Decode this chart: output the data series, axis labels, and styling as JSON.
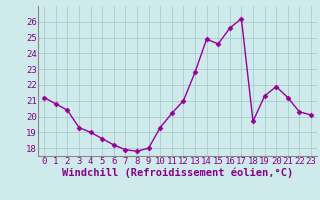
{
  "x": [
    0,
    1,
    2,
    3,
    4,
    5,
    6,
    7,
    8,
    9,
    10,
    11,
    12,
    13,
    14,
    15,
    16,
    17,
    18,
    19,
    20,
    21,
    22,
    23
  ],
  "y": [
    21.2,
    20.8,
    20.4,
    19.3,
    19.0,
    18.6,
    18.2,
    17.9,
    17.8,
    18.0,
    19.3,
    20.2,
    21.0,
    22.8,
    24.9,
    24.6,
    25.6,
    26.2,
    19.7,
    21.3,
    21.9,
    21.2,
    20.3,
    20.1
  ],
  "xlabel": "Windchill (Refroidissement éolien,°C)",
  "ylim": [
    17.5,
    27
  ],
  "xlim": [
    -0.5,
    23.5
  ],
  "xticks": [
    0,
    1,
    2,
    3,
    4,
    5,
    6,
    7,
    8,
    9,
    10,
    11,
    12,
    13,
    14,
    15,
    16,
    17,
    18,
    19,
    20,
    21,
    22,
    23
  ],
  "yticks": [
    18,
    19,
    20,
    21,
    22,
    23,
    24,
    25,
    26
  ],
  "line_color": "#990099",
  "marker": "D",
  "marker_size": 2.5,
  "bg_color": "#ceeaea",
  "grid_color": "#aacccc",
  "tick_fontsize": 6.5,
  "xlabel_fontsize": 7.5,
  "label_color": "#880088"
}
